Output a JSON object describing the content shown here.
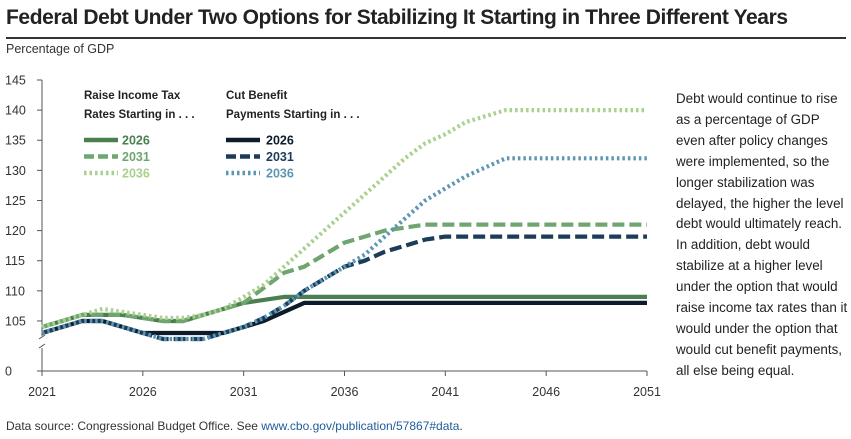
{
  "title": "Federal Debt Under Two Options for Stabilizing It Starting in Three Different Years",
  "y_unit_label": "Percentage of GDP",
  "note": "Debt would continue to rise as a percentage of GDP even after policy changes were implemented, so the longer stabilization was delayed, the higher the level debt would ultimately reach. In addition, debt would stabilize at a higher level under the option that would raise income tax rates than it would under the option that would cut benefit payments, all else being equal.",
  "source": {
    "prefix": "Data source: Congressional Budget Office. See ",
    "link": "www.cbo.gov/publication/57867#data",
    "suffix": "."
  },
  "legend": {
    "group1_title_line1": "Raise Income Tax",
    "group1_title_line2": "Rates Starting in . . .",
    "group2_title_line1": "Cut Benefit",
    "group2_title_line2": "Payments Starting in . . ."
  },
  "colors": {
    "tax_2026": "#4a7f4f",
    "tax_2031": "#6fa56f",
    "tax_2036": "#a9d08e",
    "ben_2026": "#0d1b2a",
    "ben_2031": "#1d3c5a",
    "ben_2036": "#5b96b4"
  },
  "chart_data": {
    "type": "line",
    "title": "Federal Debt Under Two Options for Stabilizing It Starting in Three Different Years",
    "ylabel": "Percentage of GDP",
    "xlabel": "",
    "xlim": [
      2021,
      2051
    ],
    "y_axis_break": true,
    "y_ticks": [
      0,
      105,
      110,
      115,
      120,
      125,
      130,
      135,
      140,
      145
    ],
    "x_ticks": [
      2021,
      2026,
      2031,
      2036,
      2041,
      2046,
      2051
    ],
    "grid": false,
    "legend_position": "top-left",
    "legend_groups": [
      {
        "title": "Raise Income Tax Rates Starting in . . .",
        "series": [
          "2026",
          "2031",
          "2036"
        ]
      },
      {
        "title": "Cut Benefit Payments Starting in . . .",
        "series": [
          "2026",
          "2031",
          "2036"
        ]
      }
    ],
    "x": [
      2021,
      2022,
      2023,
      2024,
      2025,
      2026,
      2027,
      2028,
      2029,
      2030,
      2031,
      2032,
      2033,
      2034,
      2035,
      2036,
      2037,
      2038,
      2039,
      2040,
      2041,
      2042,
      2043,
      2044,
      2045,
      2046,
      2047,
      2048,
      2049,
      2050,
      2051
    ],
    "series": [
      {
        "name": "2026",
        "group": "Raise Income Tax",
        "style": "solid",
        "color": "#4a7f4f",
        "values": [
          104,
          105,
          106,
          106,
          106,
          105.5,
          105,
          105,
          106,
          107,
          108,
          108.5,
          109,
          109,
          109,
          109,
          109,
          109,
          109,
          109,
          109,
          109,
          109,
          109,
          109,
          109,
          109,
          109,
          109,
          109,
          109
        ]
      },
      {
        "name": "2031",
        "group": "Raise Income Tax",
        "style": "dashed",
        "color": "#6fa56f",
        "values": [
          104,
          105,
          106,
          106,
          106,
          105.5,
          105,
          105,
          106,
          107,
          108,
          110.5,
          113,
          114,
          116,
          118,
          119,
          120,
          120.5,
          121,
          121,
          121,
          121,
          121,
          121,
          121,
          121,
          121,
          121,
          121,
          121
        ]
      },
      {
        "name": "2036",
        "group": "Raise Income Tax",
        "style": "dotted",
        "color": "#a9d08e",
        "values": [
          104,
          105,
          106,
          107,
          106.5,
          106,
          105.5,
          105.5,
          106,
          107,
          109,
          111,
          114,
          117,
          120,
          123,
          126,
          129,
          132,
          134.5,
          136,
          138,
          139,
          140,
          140,
          140,
          140,
          140,
          140,
          140,
          140
        ]
      },
      {
        "name": "2026",
        "group": "Cut Benefit Payments",
        "style": "solid",
        "color": "#0d1b2a",
        "values": [
          103,
          104,
          105,
          105,
          104,
          103,
          103,
          103,
          103,
          103,
          104,
          105,
          106.5,
          108,
          108,
          108,
          108,
          108,
          108,
          108,
          108,
          108,
          108,
          108,
          108,
          108,
          108,
          108,
          108,
          108,
          108
        ]
      },
      {
        "name": "2031",
        "group": "Cut Benefit Payments",
        "style": "dashed",
        "color": "#1d3c5a",
        "values": [
          103,
          104,
          105,
          105,
          104,
          103,
          102,
          102,
          102,
          103,
          104,
          105.5,
          107.5,
          110,
          112,
          114,
          115,
          116.5,
          117.5,
          118.5,
          119,
          119,
          119,
          119,
          119,
          119,
          119,
          119,
          119,
          119,
          119
        ]
      },
      {
        "name": "2036",
        "group": "Cut Benefit Payments",
        "style": "dotted",
        "color": "#5b96b4",
        "values": [
          103,
          104,
          105,
          105,
          104,
          103,
          102,
          102,
          102,
          103,
          104,
          105.5,
          107.5,
          110,
          112,
          114,
          116,
          119,
          122,
          125,
          127,
          129,
          130.5,
          132,
          132,
          132,
          132,
          132,
          132,
          132,
          132
        ]
      }
    ]
  }
}
